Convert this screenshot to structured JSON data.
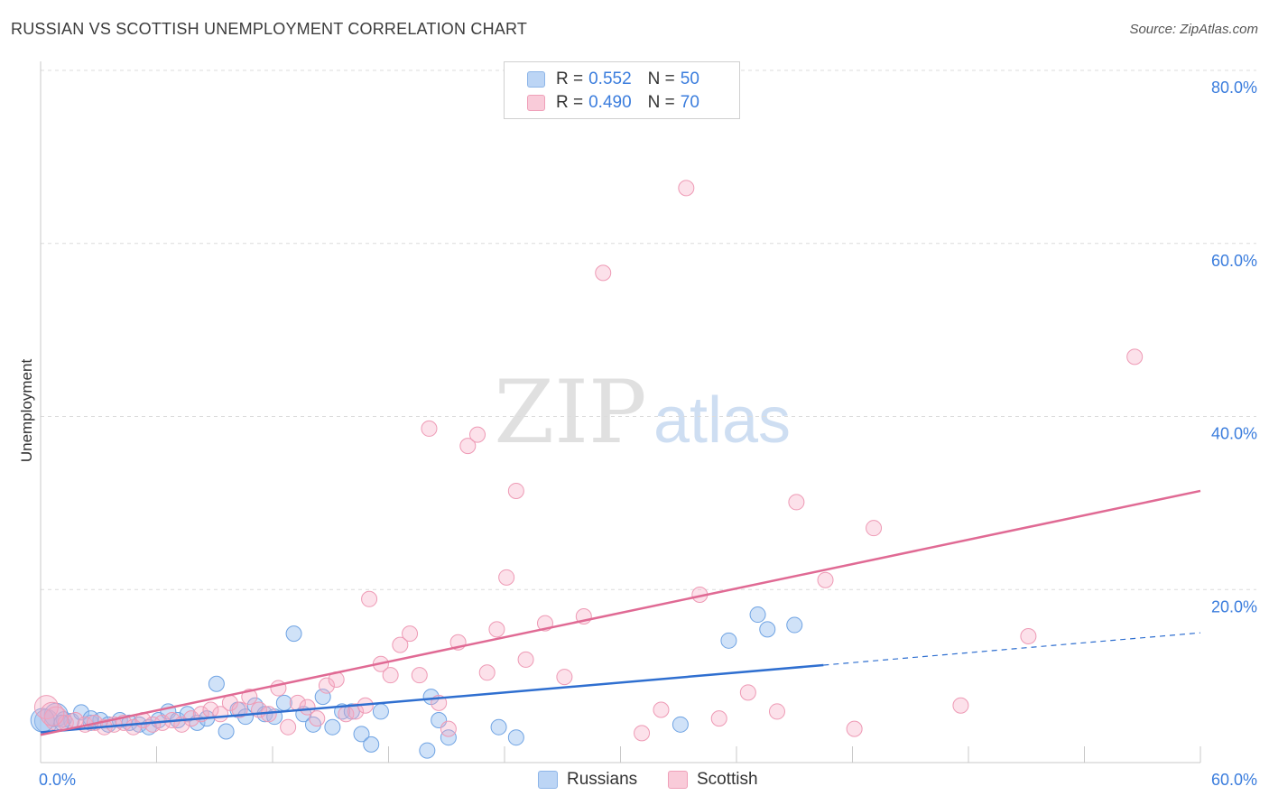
{
  "header": {
    "title": "RUSSIAN VS SCOTTISH UNEMPLOYMENT CORRELATION CHART",
    "source": "Source: ZipAtlas.com"
  },
  "watermark": {
    "zip": "ZIP",
    "atlas": "atlas"
  },
  "legend_top": {
    "rows": [
      {
        "r_label": "R =",
        "r_value": "0.552",
        "n_label": "N =",
        "n_value": "50",
        "color": "#a9c9f0"
      },
      {
        "r_label": "R =",
        "r_value": "0.490",
        "n_label": "N =",
        "n_value": "70",
        "color": "#f5b8cb"
      }
    ]
  },
  "legend_bottom": {
    "russians": "Russians",
    "scottish": "Scottish"
  },
  "chart_data": {
    "type": "scatter",
    "title": "RUSSIAN VS SCOTTISH UNEMPLOYMENT CORRELATION CHART",
    "xlabel": "",
    "ylabel": "Unemployment",
    "xlim": [
      0,
      60
    ],
    "ylim": [
      0,
      80
    ],
    "x_tick_labels": [
      {
        "value": 0,
        "label": "0.0%"
      },
      {
        "value": 60,
        "label": "60.0%"
      }
    ],
    "y_tick_labels": [
      {
        "value": 20,
        "label": "20.0%"
      },
      {
        "value": 40,
        "label": "40.0%"
      },
      {
        "value": 60,
        "label": "60.0%"
      },
      {
        "value": 80,
        "label": "80.0%"
      }
    ],
    "grid": true,
    "legend": "top-center",
    "series": [
      {
        "name": "Russians",
        "color": "#7fb0ea",
        "trend_color": "#2f6fd0",
        "trend": {
          "x0": 0,
          "y0": 3.5,
          "x1": 60,
          "y1": 15.0,
          "solid_until": 40.5
        },
        "points": [
          [
            0.3,
            4.8
          ],
          [
            0.8,
            5.5
          ],
          [
            1.2,
            5.0
          ],
          [
            1.6,
            4.8
          ],
          [
            2.1,
            5.8
          ],
          [
            2.6,
            4.6
          ],
          [
            3.1,
            4.9
          ],
          [
            3.5,
            4.4
          ],
          [
            4.1,
            4.9
          ],
          [
            4.6,
            4.6
          ],
          [
            5.1,
            4.4
          ],
          [
            5.6,
            4.1
          ],
          [
            6.1,
            4.9
          ],
          [
            6.6,
            5.9
          ],
          [
            7.1,
            4.9
          ],
          [
            7.6,
            5.6
          ],
          [
            8.1,
            4.6
          ],
          [
            8.6,
            5.1
          ],
          [
            9.1,
            9.1
          ],
          [
            9.6,
            3.6
          ],
          [
            10.2,
            6.1
          ],
          [
            10.6,
            5.3
          ],
          [
            11.1,
            6.6
          ],
          [
            11.6,
            5.6
          ],
          [
            12.1,
            5.3
          ],
          [
            12.6,
            6.9
          ],
          [
            13.1,
            14.9
          ],
          [
            13.6,
            5.6
          ],
          [
            14.1,
            4.4
          ],
          [
            14.6,
            7.6
          ],
          [
            15.1,
            4.1
          ],
          [
            15.6,
            5.9
          ],
          [
            16.1,
            5.9
          ],
          [
            16.6,
            3.3
          ],
          [
            17.1,
            2.1
          ],
          [
            17.6,
            5.9
          ],
          [
            20.2,
            7.6
          ],
          [
            20.6,
            4.9
          ],
          [
            21.1,
            2.9
          ],
          [
            20.0,
            1.4
          ],
          [
            23.7,
            4.1
          ],
          [
            24.6,
            2.9
          ],
          [
            33.1,
            4.4
          ],
          [
            35.6,
            14.1
          ],
          [
            37.1,
            17.1
          ],
          [
            37.6,
            15.4
          ],
          [
            39.0,
            15.9
          ],
          [
            2.6,
            5.1
          ],
          [
            0.1,
            4.9
          ],
          [
            1.1,
            4.6
          ]
        ]
      },
      {
        "name": "Scottish",
        "color": "#f2a3bd",
        "trend_color": "#e06a94",
        "trend": {
          "x0": 0,
          "y0": 3.2,
          "x1": 60,
          "y1": 31.4,
          "solid_until": 60
        },
        "points": [
          [
            0.3,
            6.4
          ],
          [
            0.8,
            5.1
          ],
          [
            1.3,
            4.6
          ],
          [
            1.8,
            4.9
          ],
          [
            2.3,
            4.4
          ],
          [
            2.8,
            4.6
          ],
          [
            3.3,
            4.1
          ],
          [
            3.8,
            4.4
          ],
          [
            4.3,
            4.6
          ],
          [
            4.8,
            4.1
          ],
          [
            5.3,
            4.9
          ],
          [
            5.8,
            4.4
          ],
          [
            6.3,
            4.6
          ],
          [
            6.8,
            4.9
          ],
          [
            7.3,
            4.4
          ],
          [
            7.8,
            5.1
          ],
          [
            8.3,
            5.6
          ],
          [
            8.8,
            6.1
          ],
          [
            9.3,
            5.6
          ],
          [
            9.8,
            6.9
          ],
          [
            10.3,
            6.1
          ],
          [
            10.8,
            7.6
          ],
          [
            11.3,
            6.1
          ],
          [
            11.8,
            5.6
          ],
          [
            12.3,
            8.6
          ],
          [
            12.8,
            4.1
          ],
          [
            13.3,
            6.9
          ],
          [
            13.8,
            6.4
          ],
          [
            14.3,
            5.1
          ],
          [
            14.8,
            8.9
          ],
          [
            15.3,
            9.6
          ],
          [
            15.8,
            5.6
          ],
          [
            16.3,
            5.9
          ],
          [
            16.8,
            6.6
          ],
          [
            17.0,
            18.9
          ],
          [
            17.6,
            11.4
          ],
          [
            18.1,
            10.1
          ],
          [
            18.6,
            13.6
          ],
          [
            19.1,
            14.9
          ],
          [
            19.6,
            10.1
          ],
          [
            20.1,
            38.6
          ],
          [
            20.6,
            6.9
          ],
          [
            21.1,
            3.9
          ],
          [
            21.6,
            13.9
          ],
          [
            22.1,
            36.6
          ],
          [
            22.6,
            37.9
          ],
          [
            23.1,
            10.4
          ],
          [
            23.6,
            15.4
          ],
          [
            24.1,
            21.4
          ],
          [
            24.6,
            31.4
          ],
          [
            25.1,
            11.9
          ],
          [
            26.1,
            16.1
          ],
          [
            27.1,
            9.9
          ],
          [
            28.1,
            16.9
          ],
          [
            29.1,
            56.6
          ],
          [
            31.1,
            3.4
          ],
          [
            32.1,
            6.1
          ],
          [
            33.4,
            66.4
          ],
          [
            34.1,
            19.4
          ],
          [
            35.1,
            5.1
          ],
          [
            36.6,
            8.1
          ],
          [
            38.1,
            5.9
          ],
          [
            39.1,
            30.1
          ],
          [
            40.6,
            21.1
          ],
          [
            42.1,
            3.9
          ],
          [
            43.1,
            27.1
          ],
          [
            47.6,
            6.6
          ],
          [
            51.1,
            14.6
          ],
          [
            56.6,
            46.9
          ],
          [
            0.6,
            5.6
          ]
        ]
      }
    ]
  }
}
